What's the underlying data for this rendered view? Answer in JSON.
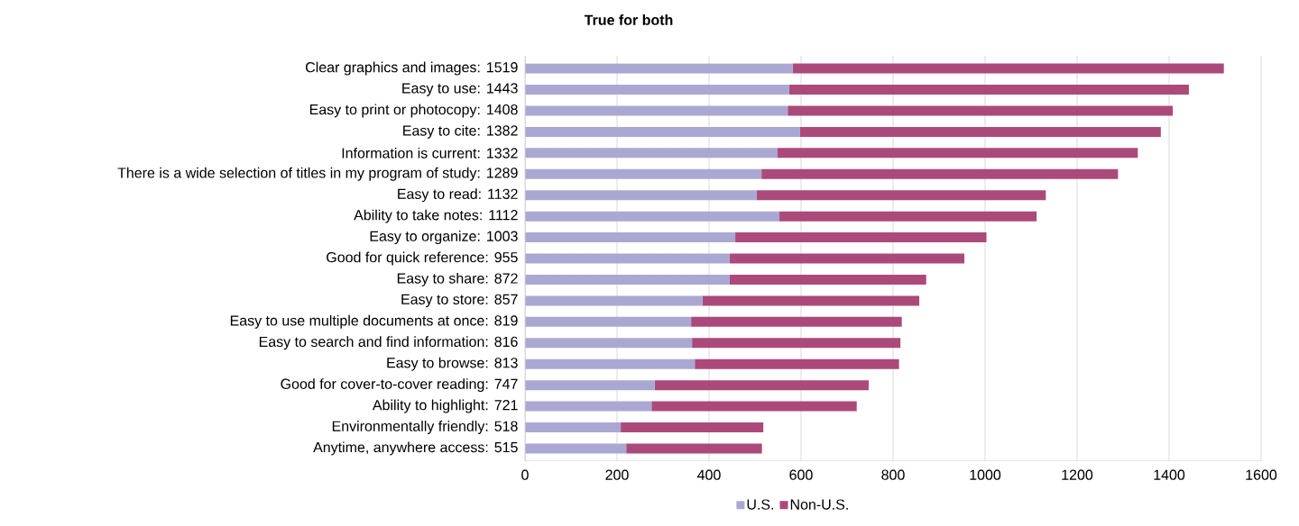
{
  "chart_data": {
    "type": "bar",
    "orientation": "horizontal",
    "stacked": true,
    "title": "True for both",
    "categories": [
      "Clear graphics and images: 1519",
      "Easy to use: 1443",
      "Easy to print or photocopy: 1408",
      "Easy to cite: 1382",
      "Information is current: 1332",
      "There is a wide selection of titles in my program of study: 1289",
      "Easy to read: 1132",
      "Ability to take notes: 1112",
      "Easy to organize: 1003",
      "Good for quick reference: 955",
      "Easy to share: 872",
      "Easy to store: 857",
      "Easy to use multiple documents at once: 819",
      "Easy to search and find information: 816",
      "Easy to browse: 813",
      "Good for cover-to-cover reading: 747",
      "Ability to highlight: 721",
      "Environmentally friendly: 518",
      "Anytime, anywhere access: 515"
    ],
    "series": [
      {
        "name": "U.S.",
        "color": "#aaa8d3",
        "values": [
          582,
          574,
          571,
          598,
          549,
          514,
          504,
          553,
          457,
          445,
          445,
          386,
          361,
          363,
          369,
          282,
          275,
          208,
          220
        ]
      },
      {
        "name": "Non-U.S.",
        "color": "#ab4a7a",
        "values": [
          937,
          869,
          837,
          784,
          783,
          775,
          628,
          559,
          546,
          510,
          427,
          471,
          458,
          453,
          444,
          465,
          446,
          310,
          295
        ]
      }
    ],
    "xlim": [
      0,
      1600
    ],
    "xticks": [
      0,
      200,
      400,
      600,
      800,
      1000,
      1200,
      1400,
      1600
    ],
    "grid": "x",
    "legend": "bottom"
  }
}
